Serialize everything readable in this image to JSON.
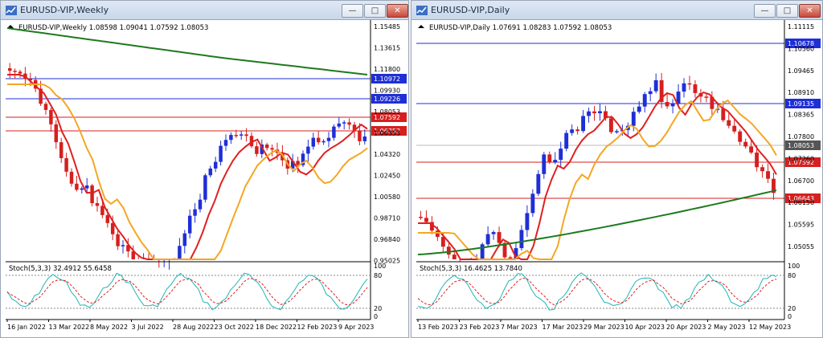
{
  "windows": [
    {
      "title": "EURUSD-VIP,Weekly",
      "info": "EURUSD-VIP,Weekly  1.08598 1.09041 1.07592 1.08053",
      "y_ticks": [
        "1.15485",
        "1.13615",
        "1.11800",
        "1.09930",
        "1.08053",
        "1.06353",
        "1.04320",
        "1.02450",
        "1.00580",
        "0.98710",
        "0.96840",
        "0.95025"
      ],
      "price_tags": [
        {
          "text": "1.10972",
          "color": "#1f2fd6"
        },
        {
          "text": "1.09226",
          "color": "#1f2fd6"
        },
        {
          "text": "1.07592",
          "color": "#d61f1f"
        },
        {
          "text": "1.06353",
          "color": "#d61f1f"
        }
      ],
      "stoch_label": "Stoch(5,3,3) 32.4912 55.6458",
      "stoch_ticks": [
        "100",
        "80",
        "20",
        "0"
      ],
      "x_labels": [
        "16 Jan 2022",
        "13 Mar 2022",
        "8 May 2022",
        "3 Jul 2022",
        "28 Aug 2022",
        "23 Oct 2022",
        "18 Dec 2022",
        "12 Feb 2023",
        "9 Apr 2023"
      ]
    },
    {
      "title": "EURUSD-VIP,Daily",
      "info": "EURUSD-VIP,Daily  1.07691 1.08283 1.07592 1.08053",
      "y_ticks": [
        "1.11115",
        "1.10560",
        "1.09465",
        "1.08910",
        "1.08365",
        "1.07800",
        "1.07260",
        "1.06700",
        "1.06150",
        "1.05595",
        "1.05055"
      ],
      "price_tags": [
        {
          "text": "1.10678",
          "color": "#1f2fd6"
        },
        {
          "text": "1.09135",
          "color": "#1f2fd6"
        },
        {
          "text": "1.08053",
          "color": "#555555"
        },
        {
          "text": "1.07592",
          "color": "#d61f1f"
        },
        {
          "text": "1.06643",
          "color": "#d61f1f"
        }
      ],
      "stoch_label": "Stoch(5,3,3) 16.4625 13.7840",
      "stoch_ticks": [
        "100",
        "80",
        "20",
        "0"
      ],
      "x_labels": [
        "13 Feb 2023",
        "23 Feb 2023",
        "7 Mar 2023",
        "17 Mar 2023",
        "29 Mar 2023",
        "10 Apr 2023",
        "20 Apr 2023",
        "2 May 2023",
        "12 May 2023"
      ]
    }
  ],
  "colors": {
    "bull": "#1f2fd6",
    "bear": "#d61f1f",
    "ma_fast": "#e0201f",
    "ma_mid": "#f5a623",
    "ma_slow": "#1e7a1e",
    "stoch_main": "#1fb5b5",
    "stoch_signal": "#e0201f"
  }
}
